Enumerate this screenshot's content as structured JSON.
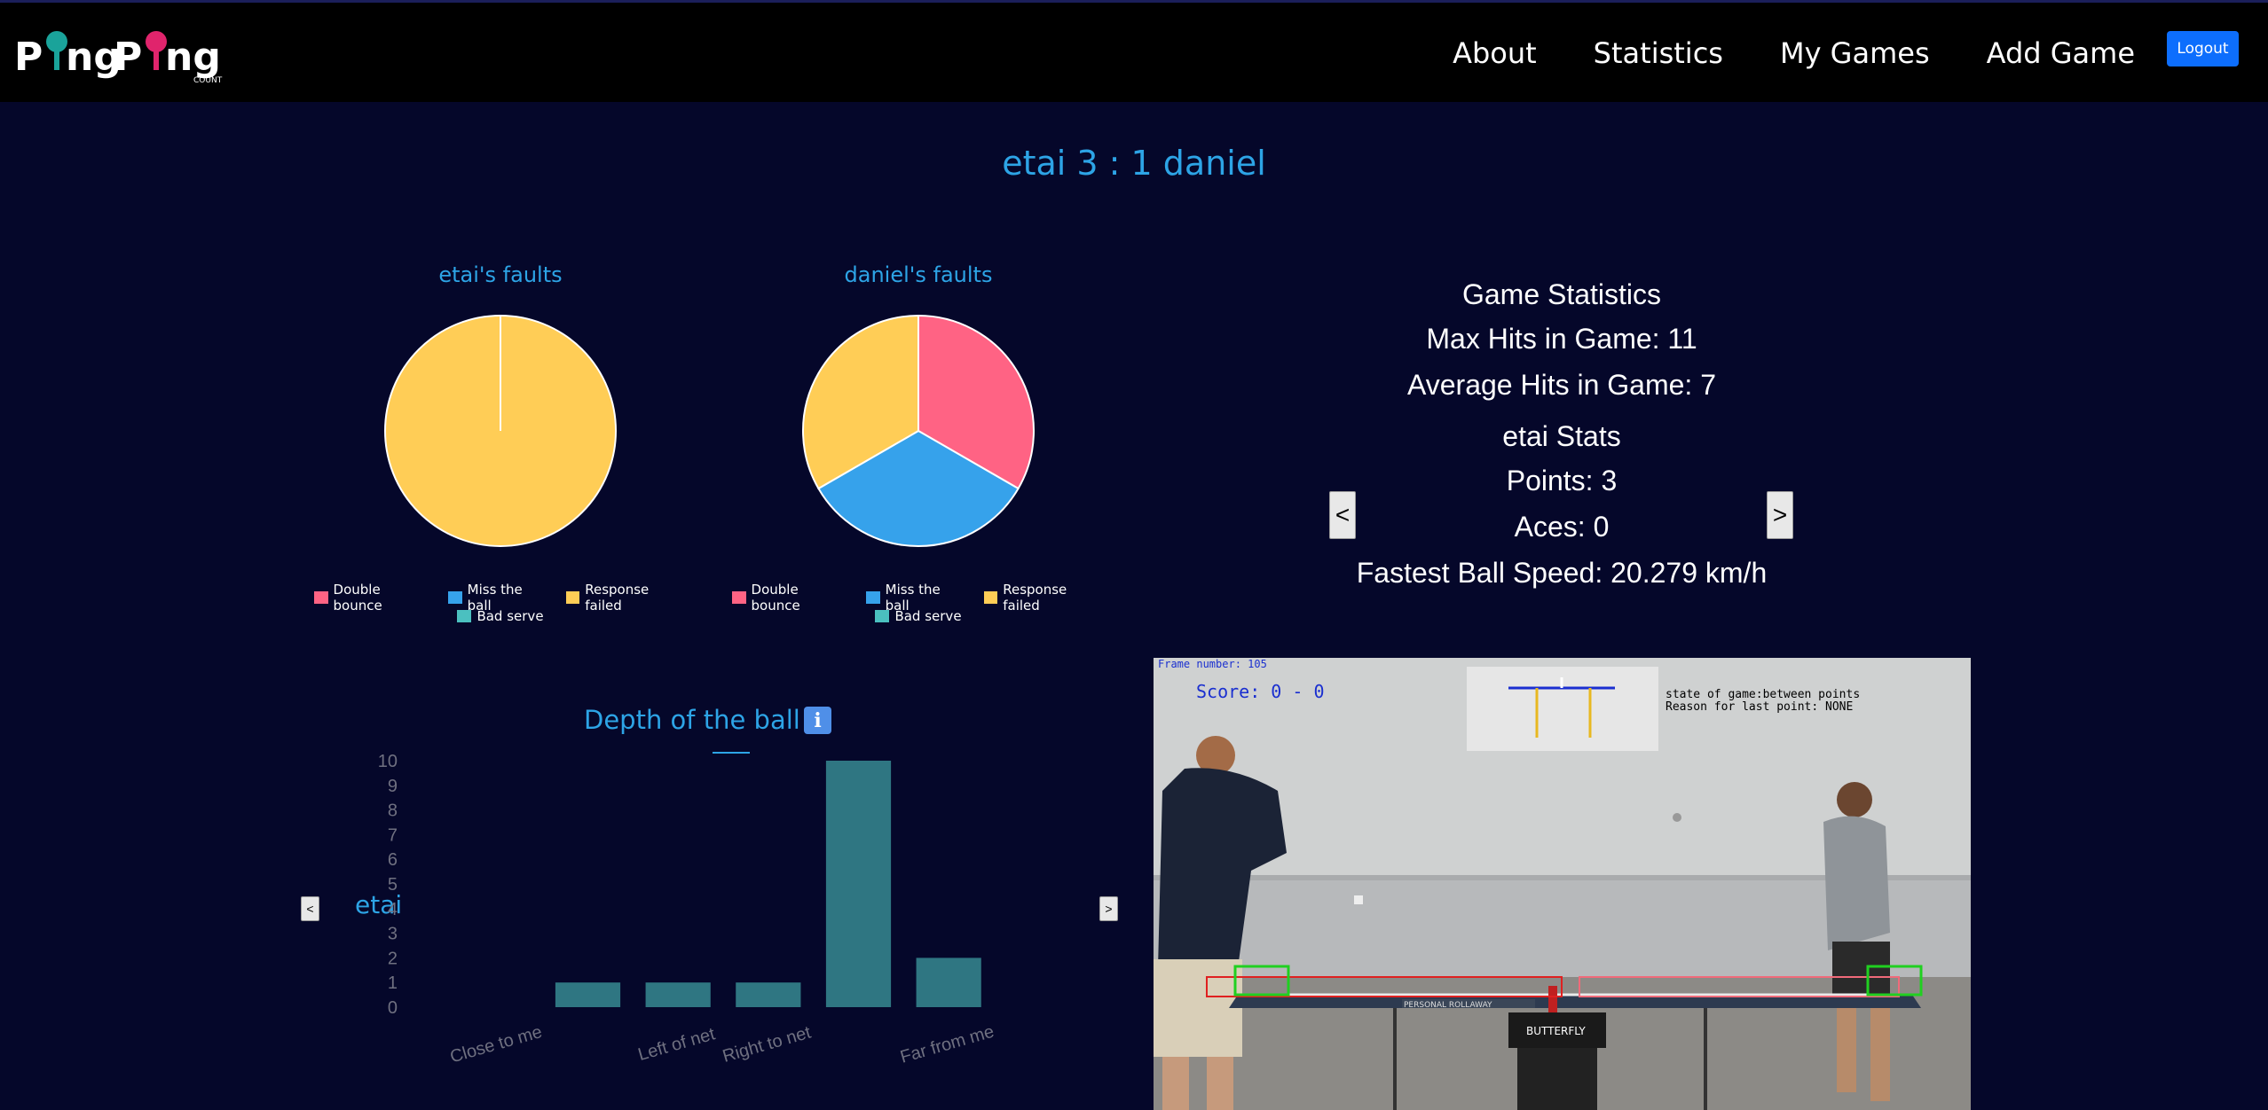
{
  "app": {
    "logo_text": "PingPong",
    "logo_subtext": "COUNT"
  },
  "nav": {
    "items": [
      {
        "label": "About"
      },
      {
        "label": "Statistics"
      },
      {
        "label": "My Games"
      },
      {
        "label": "Add Game"
      }
    ],
    "logout_label": "Logout"
  },
  "score": {
    "title": "etai 3 : 1 daniel"
  },
  "colors": {
    "accent": "#2da4e6",
    "double_bounce": "#ff6384",
    "miss_the_ball": "#36a2eb",
    "response_failed": "#ffcd56",
    "bad_serve": "#4bc0c0",
    "bar": "#2f7682",
    "background": "#05072a"
  },
  "pies": [
    {
      "title": "etai's faults",
      "legend": [
        "Double bounce",
        "Miss the ball",
        "Response failed",
        "Bad serve"
      ]
    },
    {
      "title": "daniel's faults",
      "legend": [
        "Double bounce",
        "Miss the ball",
        "Response failed",
        "Bad serve"
      ]
    }
  ],
  "chart_data": [
    {
      "type": "pie",
      "title": "etai's faults",
      "categories": [
        "Double bounce",
        "Miss the ball",
        "Response failed",
        "Bad serve"
      ],
      "values": [
        0,
        0,
        1,
        0
      ]
    },
    {
      "type": "pie",
      "title": "daniel's faults",
      "categories": [
        "Double bounce",
        "Miss the ball",
        "Response failed",
        "Bad serve"
      ],
      "values": [
        1,
        1,
        1,
        0
      ]
    },
    {
      "type": "bar",
      "title": "Depth of the ball",
      "categories": [
        "Close to me",
        "",
        "Left of net",
        "Right to net",
        "",
        "Far from me"
      ],
      "values": [
        0,
        1,
        1,
        1,
        10,
        2
      ],
      "ylim": [
        0,
        10
      ],
      "yticks": [
        0,
        1,
        2,
        3,
        4,
        5,
        6,
        7,
        8,
        9,
        10
      ],
      "legend": "none"
    }
  ],
  "game_stats": {
    "heading": "Game Statistics",
    "max_hits": "Max Hits in Game: 11",
    "avg_hits": "Average Hits in Game: 7",
    "player_heading": "etai Stats",
    "points": "Points: 3",
    "aces": "Aces: 0",
    "fastest": "Fastest Ball Speed: 20.279 km/h",
    "prev_label": "<",
    "next_label": ">"
  },
  "depth": {
    "title": "Depth of the ball",
    "info_icon": "i",
    "player": "etai",
    "prev_label": "<",
    "next_label": ">"
  },
  "video": {
    "frame_text": "Frame number: 105",
    "score_text": "Score:  0 -  0",
    "state_text": "state of game:between points",
    "reason_text": "Reason for last point: NONE",
    "banner_left": "PERSONAL ROLLAWAY",
    "brand": "BUTTERFLY"
  }
}
